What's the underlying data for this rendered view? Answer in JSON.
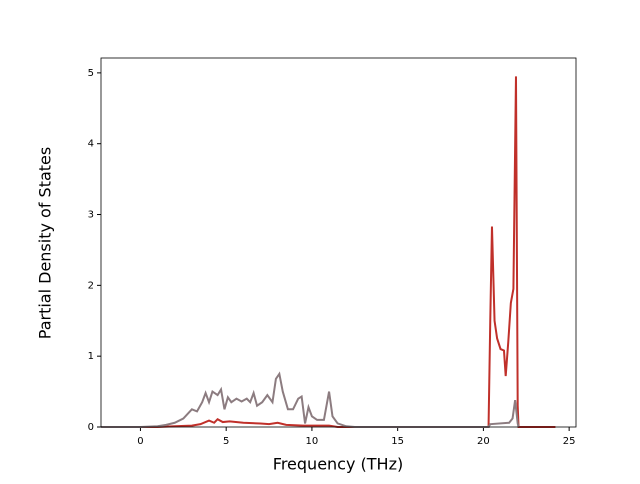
{
  "chart_data": {
    "type": "line",
    "x_label": "Frequency (THz)",
    "y_label": "Partial Density of States",
    "xlim": [
      -2.3,
      25.4
    ],
    "ylim": [
      0,
      5.21
    ],
    "xticks": [
      0,
      5,
      10,
      15,
      20,
      25
    ],
    "yticks": [
      0,
      1,
      2,
      3,
      4,
      5
    ],
    "grid": false,
    "series": [
      {
        "color": "#c0302a",
        "x": [
          -2.3,
          1,
          2,
          3,
          3.5,
          4,
          4.3,
          4.5,
          4.8,
          5.2,
          6,
          7,
          7.5,
          8,
          8.5,
          9.5,
          11,
          11.5,
          20.3,
          20.4,
          20.5,
          20.65,
          20.8,
          21,
          21.2,
          21.3,
          21.45,
          21.6,
          21.75,
          21.9,
          22.0,
          22.05,
          24.2
        ],
        "values": [
          0,
          0,
          0.01,
          0.02,
          0.04,
          0.09,
          0.06,
          0.11,
          0.07,
          0.08,
          0.06,
          0.05,
          0.04,
          0.06,
          0.03,
          0.02,
          0.02,
          0,
          0,
          1.5,
          2.83,
          1.5,
          1.25,
          1.1,
          1.08,
          0.72,
          1.2,
          1.75,
          1.95,
          4.95,
          0.3,
          0,
          0
        ]
      },
      {
        "color": "#8c7c80",
        "x": [
          -2.3,
          0,
          1,
          1.5,
          2,
          2.5,
          3,
          3.3,
          3.6,
          3.8,
          4,
          4.2,
          4.5,
          4.7,
          4.9,
          5.1,
          5.3,
          5.6,
          5.9,
          6.2,
          6.4,
          6.6,
          6.8,
          7.1,
          7.4,
          7.7,
          7.9,
          8.1,
          8.3,
          8.6,
          8.9,
          9.2,
          9.4,
          9.6,
          9.8,
          10,
          10.3,
          10.7,
          11,
          11.2,
          11.5,
          12,
          12.5,
          20.3,
          20.4,
          21.5,
          21.7,
          21.85,
          22,
          22.05
        ],
        "values": [
          0,
          0,
          0.01,
          0.03,
          0.06,
          0.12,
          0.25,
          0.22,
          0.35,
          0.48,
          0.35,
          0.5,
          0.45,
          0.53,
          0.25,
          0.42,
          0.35,
          0.4,
          0.36,
          0.4,
          0.35,
          0.48,
          0.3,
          0.35,
          0.45,
          0.35,
          0.68,
          0.75,
          0.5,
          0.25,
          0.25,
          0.4,
          0.43,
          0.05,
          0.28,
          0.15,
          0.1,
          0.1,
          0.5,
          0.15,
          0.05,
          0.01,
          0,
          0,
          0.04,
          0.06,
          0.12,
          0.38,
          0.05,
          0
        ]
      }
    ]
  }
}
